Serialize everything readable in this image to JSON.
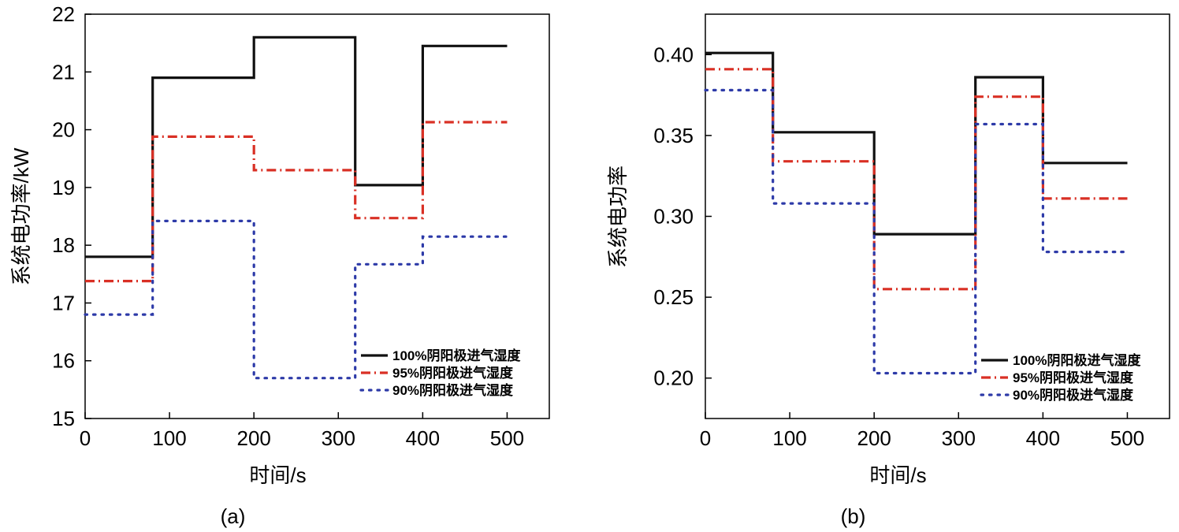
{
  "chart_data": [
    {
      "type": "line",
      "panel_label": "(a)",
      "title": "",
      "xlabel": "时间/s",
      "ylabel": "系统电功率/kW",
      "xlim": [
        0,
        550
      ],
      "ylim": [
        15,
        22
      ],
      "xticks": [
        0,
        100,
        200,
        300,
        400,
        500
      ],
      "xtick_labels": [
        "0",
        "100",
        "200",
        "300",
        "400",
        "500"
      ],
      "yticks": [
        15,
        16,
        17,
        18,
        19,
        20,
        21,
        22
      ],
      "ytick_labels": [
        "15",
        "16",
        "17",
        "18",
        "19",
        "20",
        "21",
        "22"
      ],
      "legend_position": "lower-right",
      "series": [
        {
          "name": "100%阴阳极进气湿度",
          "style": "solid",
          "color": "#111111",
          "x": [
            0,
            80,
            80,
            200,
            200,
            320,
            320,
            400,
            400,
            500
          ],
          "y": [
            17.8,
            17.8,
            20.9,
            20.9,
            21.6,
            21.6,
            19.04,
            19.04,
            21.45,
            21.45
          ]
        },
        {
          "name": "95%阴阳极进气湿度",
          "style": "dashdot",
          "color": "#d93025",
          "x": [
            0,
            80,
            80,
            200,
            200,
            320,
            320,
            400,
            400,
            500
          ],
          "y": [
            17.38,
            17.38,
            19.88,
            19.88,
            19.3,
            19.3,
            18.47,
            18.47,
            20.13,
            20.13
          ]
        },
        {
          "name": "90%阴阳极进气湿度",
          "style": "dotted",
          "color": "#2d3aa8",
          "x": [
            0,
            80,
            80,
            200,
            200,
            320,
            320,
            400,
            400,
            500
          ],
          "y": [
            16.8,
            16.8,
            18.42,
            18.42,
            15.7,
            15.7,
            17.67,
            17.67,
            18.15,
            18.15
          ]
        }
      ]
    },
    {
      "type": "line",
      "panel_label": "(b)",
      "title": "",
      "xlabel": "时间/s",
      "ylabel": "系统电功率",
      "xlim": [
        0,
        550
      ],
      "ylim": [
        0.175,
        0.425
      ],
      "xticks": [
        0,
        100,
        200,
        300,
        400,
        500
      ],
      "xtick_labels": [
        "0",
        "100",
        "200",
        "300",
        "400",
        "500"
      ],
      "yticks": [
        0.2,
        0.25,
        0.3,
        0.35,
        0.4
      ],
      "ytick_labels": [
        "0.20",
        "0.25",
        "0.30",
        "0.35",
        "0.40"
      ],
      "legend_position": "lower-right",
      "series": [
        {
          "name": "100%阴阳极进气湿度",
          "style": "solid",
          "color": "#111111",
          "x": [
            0,
            80,
            80,
            200,
            200,
            320,
            320,
            400,
            400,
            500
          ],
          "y": [
            0.401,
            0.401,
            0.352,
            0.352,
            0.289,
            0.289,
            0.386,
            0.386,
            0.333,
            0.333
          ]
        },
        {
          "name": "95%阴阳极进气湿度",
          "style": "dashdot",
          "color": "#d93025",
          "x": [
            0,
            80,
            80,
            200,
            200,
            320,
            320,
            400,
            400,
            500
          ],
          "y": [
            0.391,
            0.391,
            0.334,
            0.334,
            0.255,
            0.255,
            0.374,
            0.374,
            0.311,
            0.311
          ]
        },
        {
          "name": "90%阴阳极进气湿度",
          "style": "dotted",
          "color": "#2d3aa8",
          "x": [
            0,
            80,
            80,
            200,
            200,
            320,
            320,
            400,
            400,
            500
          ],
          "y": [
            0.378,
            0.378,
            0.308,
            0.308,
            0.203,
            0.203,
            0.357,
            0.357,
            0.278,
            0.278
          ]
        }
      ]
    }
  ]
}
